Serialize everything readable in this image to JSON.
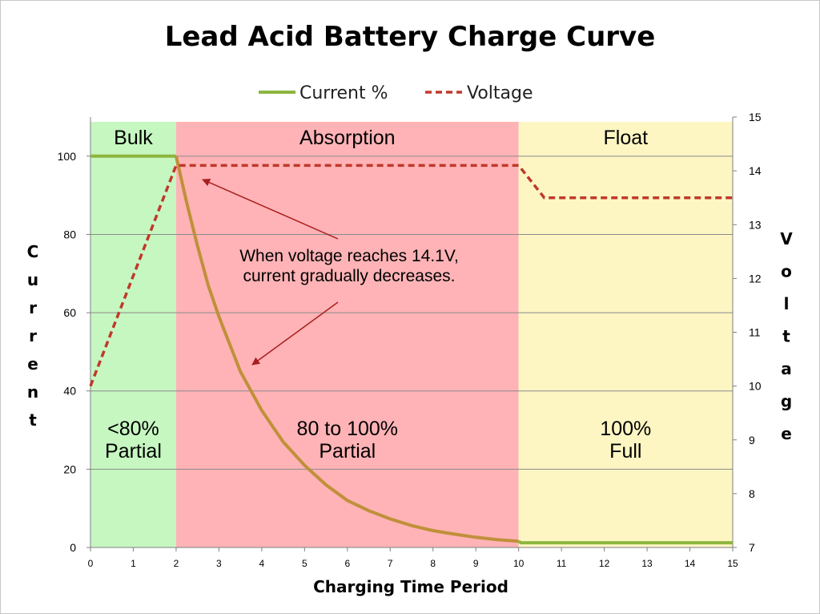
{
  "chart_data": {
    "type": "line",
    "title": "Lead Acid Battery Charge Curve",
    "xlabel": "Charging Time Period",
    "ylabel": "Current",
    "y2label": "Voltage",
    "xlim": [
      0,
      15
    ],
    "ylim": [
      0,
      110
    ],
    "y2lim": [
      7,
      15
    ],
    "x_ticks": [
      0,
      1,
      2,
      3,
      4,
      5,
      6,
      7,
      8,
      9,
      10,
      11,
      12,
      13,
      14,
      15
    ],
    "y_ticks": [
      0,
      20,
      40,
      60,
      80,
      100
    ],
    "y2_ticks": [
      7,
      8,
      9,
      10,
      11,
      12,
      13,
      14,
      15
    ],
    "grid": true,
    "legend": "top-center",
    "series": [
      {
        "name": "Current %",
        "axis": "left",
        "style": "solid",
        "color": "#8db63e",
        "x": [
          0,
          2,
          2.25,
          2.5,
          2.75,
          3,
          3.5,
          4,
          4.5,
          5,
          5.5,
          6,
          6.5,
          7,
          7.5,
          8,
          8.5,
          9,
          9.5,
          10,
          10.05,
          15
        ],
        "y": [
          100,
          100,
          88,
          77,
          67,
          59,
          45,
          35,
          27,
          21,
          16,
          12,
          9.4,
          7.3,
          5.6,
          4.3,
          3.4,
          2.6,
          2.0,
          1.6,
          1.2,
          1.2
        ]
      },
      {
        "name": "Voltage",
        "axis": "right",
        "style": "dashed",
        "color": "#c0392b",
        "x": [
          0,
          2,
          10,
          10.6,
          15
        ],
        "y": [
          10,
          14.1,
          14.1,
          13.5,
          13.5
        ]
      }
    ],
    "regions": [
      {
        "name": "Bulk",
        "x0": 0,
        "x1": 2,
        "color": "#c6f7c1",
        "label": [
          "<80%",
          "Partial"
        ]
      },
      {
        "name": "Absorption",
        "x0": 2,
        "x1": 10,
        "color": "#ffb3b6",
        "label": [
          "80 to 100%",
          "Partial"
        ]
      },
      {
        "name": "Float",
        "x0": 10,
        "x1": 15,
        "color": "#fdf6c3",
        "label": [
          "100%",
          "Full"
        ]
      }
    ],
    "annotation": {
      "lines": [
        "When voltage reaches 14.1V,",
        "current gradually decreases."
      ]
    }
  }
}
